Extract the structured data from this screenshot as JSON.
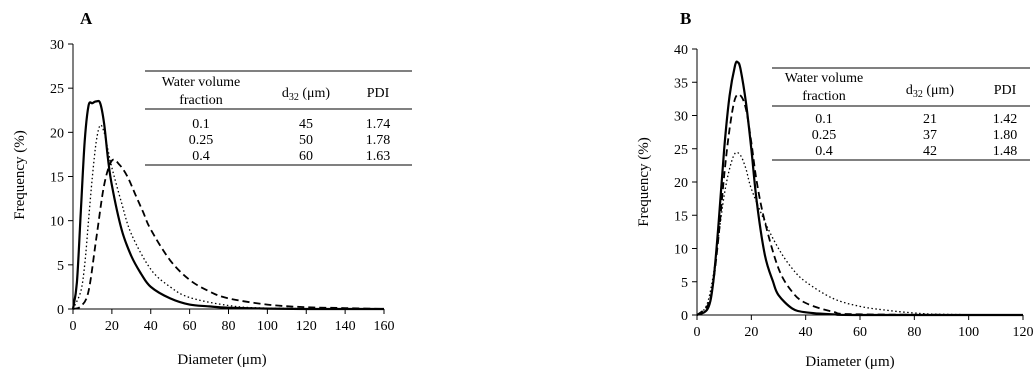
{
  "chart_data": [
    {
      "panel": "A",
      "type": "line",
      "xlabel": "Diameter (μm)",
      "ylabel": "Frequency (%)",
      "xlim": [
        0,
        160
      ],
      "ylim": [
        0,
        30
      ],
      "xticks": [
        0,
        20,
        40,
        60,
        80,
        100,
        120,
        140,
        160
      ],
      "yticks": [
        0,
        5,
        10,
        15,
        20,
        25,
        30
      ],
      "series": [
        {
          "style": "solid",
          "x": [
            0,
            2,
            4,
            6,
            8,
            10,
            12,
            14,
            16,
            18,
            20,
            25,
            30,
            35,
            40,
            50,
            60,
            70,
            80,
            100,
            120,
            160
          ],
          "y": [
            0,
            3,
            11,
            19,
            23,
            23.3,
            23.5,
            23.3,
            21,
            17,
            14,
            9,
            6,
            4,
            2.5,
            1.2,
            0.5,
            0.3,
            0.15,
            0.05,
            0,
            0
          ]
        },
        {
          "style": "dotted",
          "x": [
            0,
            4,
            6,
            8,
            10,
            12,
            14,
            16,
            18,
            20,
            25,
            30,
            40,
            50,
            60,
            80,
            100,
            160
          ],
          "y": [
            0,
            2,
            5,
            10,
            15,
            19,
            20.8,
            20,
            18,
            16,
            12,
            8.5,
            4.5,
            2.5,
            1.3,
            0.4,
            0.1,
            0
          ]
        },
        {
          "style": "dashed",
          "x": [
            0,
            4,
            8,
            12,
            16,
            20,
            24,
            28,
            32,
            36,
            40,
            50,
            60,
            70,
            80,
            100,
            120,
            140,
            160
          ],
          "y": [
            0,
            0.3,
            2,
            8,
            14,
            16.8,
            16.3,
            15,
            13,
            11,
            9,
            5.5,
            3.3,
            2,
            1.2,
            0.5,
            0.2,
            0.1,
            0
          ]
        }
      ],
      "table": {
        "headers": [
          "Water volume fraction",
          "d32 (μm)",
          "PDI"
        ],
        "rows": [
          [
            "0.1",
            "45",
            "1.74"
          ],
          [
            "0.25",
            "50",
            "1.78"
          ],
          [
            "0.4",
            "60",
            "1.63"
          ]
        ]
      }
    },
    {
      "panel": "B",
      "type": "line",
      "xlabel": "Diameter (μm)",
      "ylabel": "Frequency (%)",
      "xlim": [
        0,
        120
      ],
      "ylim": [
        0,
        40
      ],
      "xticks": [
        0,
        20,
        40,
        60,
        80,
        100,
        120
      ],
      "yticks": [
        0,
        5,
        10,
        15,
        20,
        25,
        30,
        35,
        40
      ],
      "series": [
        {
          "style": "solid",
          "x": [
            0,
            4,
            6,
            8,
            10,
            12,
            14,
            15,
            16,
            18,
            20,
            22,
            25,
            28,
            30,
            35,
            40,
            50,
            60,
            120
          ],
          "y": [
            0,
            1,
            5,
            14,
            25,
            33,
            37.5,
            38,
            37,
            32,
            25,
            17,
            9,
            5,
            3,
            1,
            0.4,
            0.1,
            0,
            0
          ]
        },
        {
          "style": "dashed",
          "x": [
            0,
            4,
            6,
            8,
            10,
            12,
            14,
            16,
            18,
            20,
            22,
            25,
            30,
            35,
            40,
            50,
            60,
            120
          ],
          "y": [
            0,
            1.5,
            5,
            12,
            21,
            28,
            32.5,
            33,
            31,
            26,
            20,
            14,
            7,
            3.5,
            1.8,
            0.5,
            0.1,
            0
          ]
        },
        {
          "style": "dotted",
          "x": [
            0,
            2,
            4,
            6,
            8,
            10,
            12,
            14,
            16,
            18,
            20,
            25,
            30,
            35,
            40,
            50,
            60,
            70,
            80,
            90,
            120
          ],
          "y": [
            0,
            0.5,
            2,
            6,
            12,
            18,
            22,
            24.3,
            24,
            22,
            19,
            14,
            10,
            7,
            5,
            2.5,
            1.3,
            0.7,
            0.3,
            0.1,
            0
          ]
        }
      ],
      "table": {
        "headers": [
          "Water volume fraction",
          "d32 (μm)",
          "PDI"
        ],
        "rows": [
          [
            "0.1",
            "21",
            "1.42"
          ],
          [
            "0.25",
            "37",
            "1.80"
          ],
          [
            "0.4",
            "42",
            "1.48"
          ]
        ]
      }
    }
  ]
}
